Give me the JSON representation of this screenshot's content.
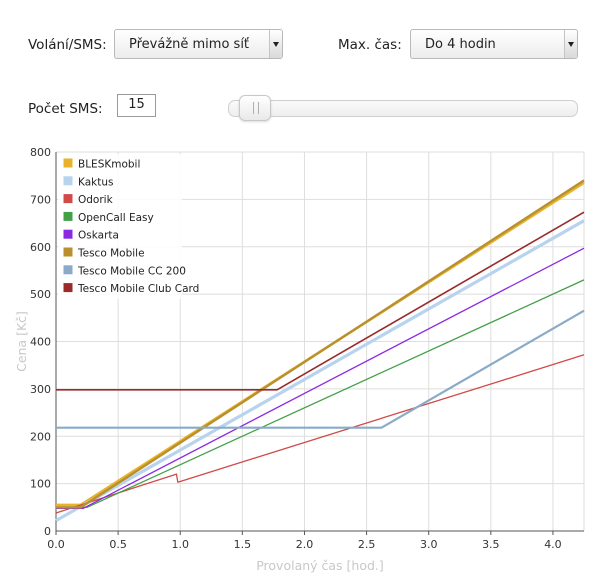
{
  "controls": {
    "calls_label": "Volání/SMS:",
    "calls_value": "Převážně mimo síť",
    "maxtime_label": "Max. čas:",
    "maxtime_value": "Do 4 hodin",
    "sms_label": "Počet SMS:",
    "sms_value": "15"
  },
  "chart_data": {
    "type": "line",
    "xlabel": "Provolaný čas [hod.]",
    "ylabel": "Cena [Kč]",
    "xlim": [
      0,
      4.25
    ],
    "ylim": [
      0,
      800
    ],
    "xticks": [
      "0.0",
      "0.5",
      "1.0",
      "1.5",
      "2.0",
      "2.5",
      "3.0",
      "3.5",
      "4.0"
    ],
    "yticks": [
      "0",
      "100",
      "200",
      "300",
      "400",
      "500",
      "600",
      "700",
      "800"
    ],
    "grid": true,
    "legend_position": "top-left",
    "series": [
      {
        "name": "BLESKmobil",
        "color": "#e8b32a",
        "width": 2.6,
        "points": [
          [
            0,
            55
          ],
          [
            0.2,
            55
          ],
          [
            4.25,
            735
          ]
        ]
      },
      {
        "name": "Kaktus",
        "color": "#b7d3ee",
        "width": 3.2,
        "points": [
          [
            0,
            22
          ],
          [
            4.25,
            655
          ]
        ]
      },
      {
        "name": "Odorik",
        "color": "#d14a48",
        "width": 1.3,
        "points": [
          [
            0,
            38
          ],
          [
            0.97,
            120
          ],
          [
            0.98,
            103
          ],
          [
            4.25,
            372
          ]
        ]
      },
      {
        "name": "OpenCall Easy",
        "color": "#43a047",
        "width": 1.3,
        "points": [
          [
            0,
            50
          ],
          [
            0.25,
            50
          ],
          [
            4.25,
            530
          ]
        ]
      },
      {
        "name": "Oskarta",
        "color": "#8a2be2",
        "width": 1.3,
        "points": [
          [
            0,
            48
          ],
          [
            0.22,
            48
          ],
          [
            4.25,
            597
          ]
        ]
      },
      {
        "name": "Tesco Mobile",
        "color": "#b8902f",
        "width": 2.4,
        "points": [
          [
            0,
            50
          ],
          [
            0.2,
            50
          ],
          [
            4.25,
            740
          ]
        ]
      },
      {
        "name": "Tesco Mobile CC 200",
        "color": "#8aaac7",
        "width": 2.2,
        "points": [
          [
            0,
            218
          ],
          [
            2.62,
            218
          ],
          [
            4.25,
            465
          ]
        ]
      },
      {
        "name": "Tesco Mobile Club Card",
        "color": "#9b2a2a",
        "width": 1.6,
        "points": [
          [
            0,
            298
          ],
          [
            1.78,
            298
          ],
          [
            4.25,
            673
          ]
        ]
      }
    ]
  }
}
